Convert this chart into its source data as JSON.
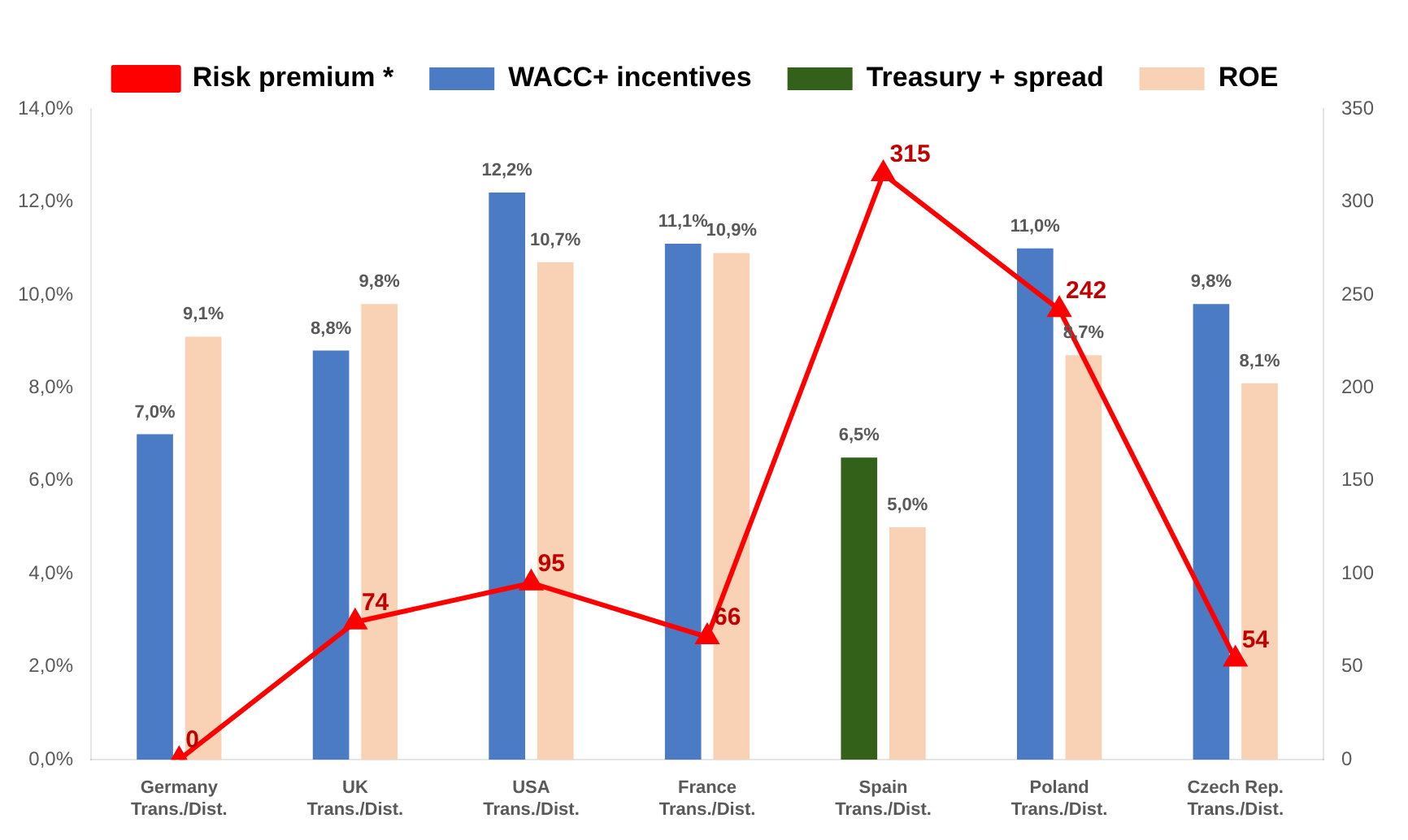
{
  "chart_data": {
    "type": "bar",
    "categories": [
      "Germany\nTrans./Dist.",
      "UK\nTrans./Dist.",
      "USA\nTrans./Dist.",
      "France\nTrans./Dist.",
      "Spain\nTrans./Dist.",
      "Poland\nTrans./Dist.",
      "Czech Rep.\nTrans./Dist."
    ],
    "series": [
      {
        "name": "WACC+ incentives",
        "color": "#4a7bc4",
        "values": [
          7.0,
          8.8,
          12.2,
          11.1,
          null,
          11.0,
          9.8
        ],
        "value_labels": [
          "7,0%",
          "8,8%",
          "12,2%",
          "11,1%",
          null,
          "11,0%",
          "9,8%"
        ]
      },
      {
        "name": "Treasury + spread",
        "color": "#336119",
        "values": [
          null,
          null,
          null,
          null,
          6.5,
          null,
          null
        ],
        "value_labels": [
          null,
          null,
          null,
          null,
          "6,5%",
          null,
          null
        ]
      },
      {
        "name": "ROE",
        "color": "#f9d1b5",
        "values": [
          9.1,
          9.8,
          10.7,
          10.9,
          5.0,
          8.7,
          8.1
        ],
        "value_labels": [
          "9,1%",
          "9,8%",
          "10,7%",
          "10,9%",
          "5,0%",
          "8,7%",
          "8,1%"
        ]
      },
      {
        "name": "Risk premium *",
        "type": "line",
        "axis": "y2",
        "color": "#ff0000",
        "marker": "triangle",
        "values": [
          0,
          74,
          95,
          66,
          315,
          242,
          54
        ],
        "value_labels": [
          "0",
          "74",
          "95",
          "66",
          "315",
          "242",
          "54"
        ]
      }
    ],
    "ylim": [
      0,
      14
    ],
    "yticks": [
      {
        "value": 0,
        "label": "0,0%"
      },
      {
        "value": 2,
        "label": "2,0%"
      },
      {
        "value": 4,
        "label": "4,0%"
      },
      {
        "value": 6,
        "label": "6,0%"
      },
      {
        "value": 8,
        "label": "8,0%"
      },
      {
        "value": 10,
        "label": "10,0%"
      },
      {
        "value": 12,
        "label": "12,0%"
      },
      {
        "value": 14,
        "label": "14,0%"
      }
    ],
    "y2lim": [
      0,
      350
    ],
    "y2ticks": [
      0,
      50,
      100,
      150,
      200,
      250,
      300,
      350
    ],
    "grid": false,
    "legend": "top"
  }
}
